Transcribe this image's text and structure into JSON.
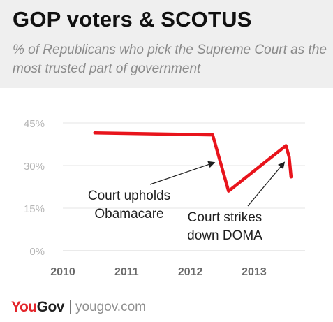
{
  "header": {
    "title": "GOP voters & SCOTUS",
    "subtitle": "% of Republicans who pick the Supreme Court as the most trusted part of government"
  },
  "chart_data": {
    "type": "line",
    "title": "GOP voters & SCOTUS",
    "subtitle": "% of Republicans who pick the Supreme Court as the most trusted part of government",
    "y_ticks": [
      "0%",
      "15%",
      "30%",
      "45%"
    ],
    "y_tick_values": [
      0,
      15,
      30,
      45
    ],
    "x_ticks": [
      "2010",
      "2011",
      "2012",
      "2013"
    ],
    "x_tick_values": [
      2010,
      2011,
      2012,
      2013
    ],
    "ylim": [
      0,
      45
    ],
    "xlim": [
      2010,
      2013.8
    ],
    "grid": true,
    "series": [
      {
        "color": "#e8141c",
        "points": [
          {
            "x": 2010.5,
            "y": 41.5
          },
          {
            "x": 2012.35,
            "y": 40.8
          },
          {
            "x": 2012.6,
            "y": 21
          },
          {
            "x": 2013.5,
            "y": 37
          },
          {
            "x": 2013.55,
            "y": 33
          },
          {
            "x": 2013.58,
            "y": 26
          }
        ]
      }
    ],
    "annotations": [
      {
        "lines": [
          "Court upholds",
          "Obamacare"
        ],
        "arrow_to": {
          "x": 2012.37,
          "y": 31
        }
      },
      {
        "lines": [
          "Court strikes",
          "down DOMA"
        ],
        "arrow_to": {
          "x": 2013.47,
          "y": 31
        }
      }
    ]
  },
  "footer": {
    "logo_you": "You",
    "logo_gov": "Gov",
    "url": "yougov.com"
  },
  "colors": {
    "accent": "#e8141c",
    "header_bg": "#efefef",
    "grid": "#e4e4e4",
    "tick_label": "#b5b5b5"
  }
}
